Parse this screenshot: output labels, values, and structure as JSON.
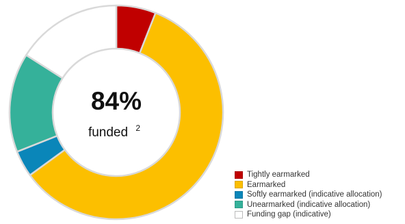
{
  "chart_data": {
    "type": "pie",
    "variant": "donut",
    "center": {
      "value": "84%",
      "label": "funded",
      "footnote": "2"
    },
    "series": [
      {
        "name": "Tightly earmarked",
        "value": 6,
        "color": "#c00000"
      },
      {
        "name": "Earmarked",
        "value": 59,
        "color": "#fcbf00"
      },
      {
        "name": "Softly earmarked (indicative allocation)",
        "value": 4,
        "color": "#0a86b9"
      },
      {
        "name": "Unearmarked (indicative allocation)",
        "value": 15,
        "color": "#35b19a"
      },
      {
        "name": "Funding gap (indicative)",
        "value": 16,
        "color": "#ffffff"
      }
    ],
    "legend_position": "bottom-right"
  }
}
